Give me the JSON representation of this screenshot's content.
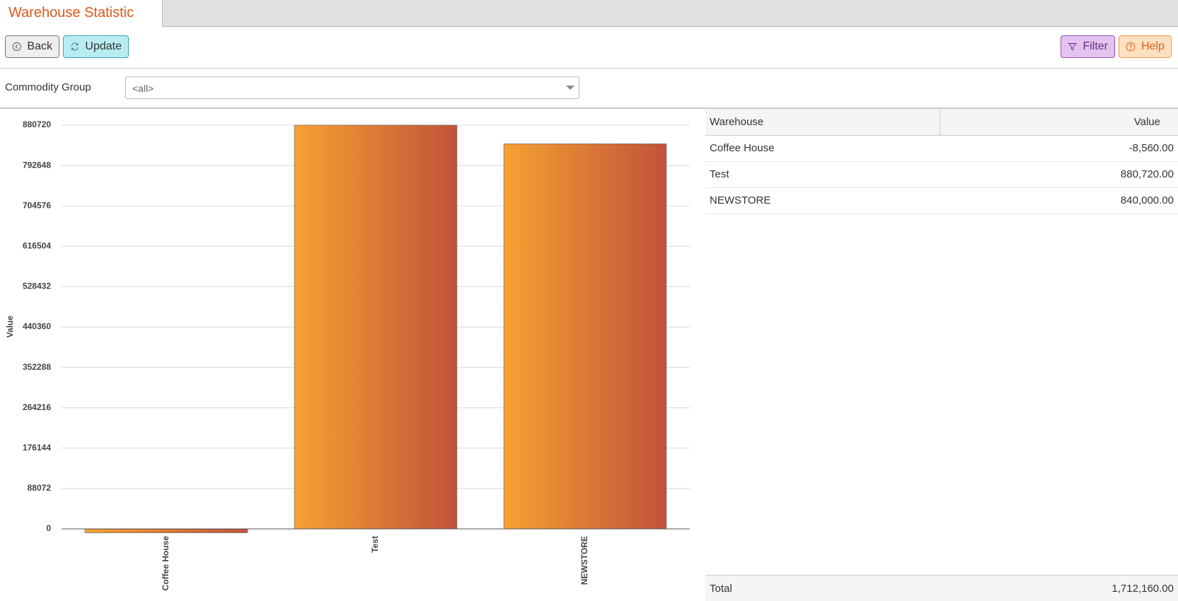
{
  "header": {
    "title": "Warehouse Statistic"
  },
  "toolbar": {
    "back": "Back",
    "update": "Update",
    "filter": "Filter",
    "help": "Help"
  },
  "filters": {
    "label": "Commodity Group",
    "value": "<all>"
  },
  "chart_data": {
    "type": "bar",
    "ylabel": "Value",
    "categories": [
      "Coffee House",
      "Test",
      "NEWSTORE"
    ],
    "values": [
      -8560,
      880720,
      840000
    ],
    "colors": [
      "#f6a232",
      "#c1523a"
    ],
    "ylim": [
      0,
      880720
    ],
    "yticks": [
      0,
      88072,
      176144,
      264216,
      352288,
      440360,
      528432,
      616504,
      704576,
      792648,
      880720
    ],
    "grid": true
  },
  "table": {
    "columns": [
      "Warehouse",
      "Value"
    ],
    "rows": [
      [
        "Coffee House",
        "-8,560.00"
      ],
      [
        "Test",
        "880,720.00"
      ],
      [
        "NEWSTORE",
        "840,000.00"
      ]
    ],
    "total": [
      "Total",
      "1,712,160.00"
    ]
  }
}
